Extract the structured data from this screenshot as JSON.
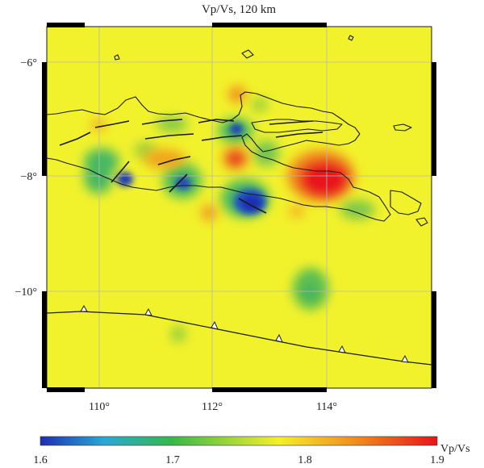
{
  "map": {
    "title": "Vp/Vs, 120 km",
    "lon_range": [
      109.3,
      115.7
    ],
    "lat_range": [
      -11.7,
      -5.3
    ],
    "lon_ticks": [
      {
        "value": 110,
        "label": "110°"
      },
      {
        "value": 112,
        "label": "112°"
      },
      {
        "value": 114,
        "label": "114°"
      }
    ],
    "lat_ticks": [
      {
        "value": -6,
        "label": "−6°"
      },
      {
        "value": -8,
        "label": "−8°"
      },
      {
        "value": -10,
        "label": "−10°"
      }
    ],
    "grid": true,
    "background_value": 1.78,
    "anomalies": [
      {
        "name": "red-anomaly-east-java",
        "lon": 113.9,
        "lat": -8.0,
        "value": 1.9
      },
      {
        "name": "blue-anomaly-south-central",
        "lon": 112.7,
        "lat": -8.4,
        "value": 1.6
      },
      {
        "name": "blue-anomaly-west",
        "lon": 110.6,
        "lat": -8.0,
        "value": 1.6
      },
      {
        "name": "blue-anomaly-central",
        "lon": 111.6,
        "lat": -8.1,
        "value": 1.63
      },
      {
        "name": "blue-anomaly-north",
        "lon": 112.5,
        "lat": -7.1,
        "value": 1.62
      },
      {
        "name": "red-anomaly-central",
        "lon": 112.5,
        "lat": -7.6,
        "value": 1.9
      },
      {
        "name": "orange-anomaly-north",
        "lon": 112.5,
        "lat": -6.5,
        "value": 1.84
      },
      {
        "name": "orange-anomaly-west",
        "lon": 111.2,
        "lat": -7.6,
        "value": 1.83
      },
      {
        "name": "orange-anomaly-south",
        "lon": 112.0,
        "lat": -8.6,
        "value": 1.84
      },
      {
        "name": "orange-anomaly-far-west",
        "lon": 110.1,
        "lat": -7.1,
        "value": 1.83
      },
      {
        "name": "green-anomaly-offshore",
        "lon": 113.9,
        "lat": -10.0,
        "value": 1.7
      },
      {
        "name": "green-anomaly-offshore-small",
        "lon": 111.5,
        "lat": -10.8,
        "value": 1.73
      },
      {
        "name": "green-anomaly-west",
        "lon": 110.1,
        "lat": -7.6,
        "value": 1.7
      },
      {
        "name": "green-anomaly-central",
        "lon": 111.8,
        "lat": -7.2,
        "value": 1.72
      },
      {
        "name": "green-anomaly-mid",
        "lon": 113.0,
        "lat": -7.9,
        "value": 1.72
      },
      {
        "name": "green-anomaly-east-coast",
        "lon": 114.6,
        "lat": -8.7,
        "value": 1.72
      }
    ],
    "colorbar": {
      "label": "Vp/Vs",
      "min": 1.6,
      "max": 1.9,
      "ticks": [
        {
          "value": 1.6,
          "label": "1.6"
        },
        {
          "value": 1.7,
          "label": "1.7"
        },
        {
          "value": 1.8,
          "label": "1.8"
        },
        {
          "value": 1.9,
          "label": "1.9"
        }
      ],
      "colors": [
        "#1c2fb0",
        "#2aa7d6",
        "#36b84a",
        "#f5ef2a",
        "#f08a1c",
        "#e8131b"
      ]
    }
  }
}
